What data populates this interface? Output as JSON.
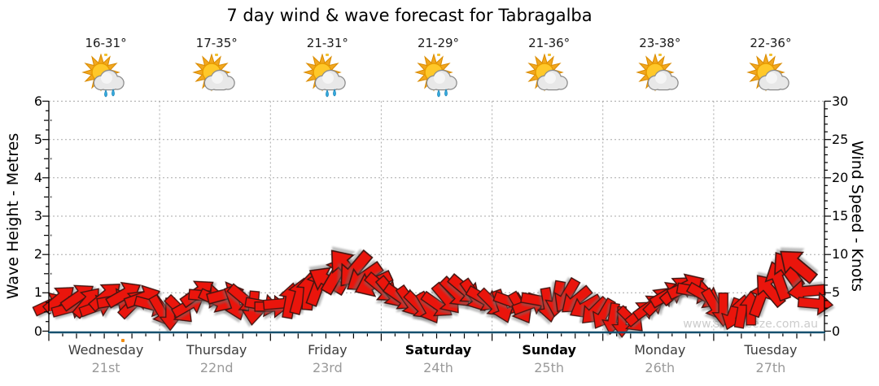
{
  "title": "7 day wind & wave forecast for Tabragalba",
  "watermark": "www.seabreeze.com.au",
  "colors": {
    "arrow_fill": "#ea150c",
    "arrow_stroke": "#401410",
    "baseline": "#15506e",
    "axis_line": "#000000",
    "grid": "#a8a8a8",
    "sun": "#ffc829",
    "sun_rays": "#f2a71f",
    "cloud": "#e8e8e8",
    "rain": "#35aadf",
    "watermark_color": "#cccccc"
  },
  "days": [
    {
      "name": "Wednesday",
      "date": "21st",
      "temp": "16-31°",
      "icon": "sun-cloud-rain",
      "weekend": false
    },
    {
      "name": "Thursday",
      "date": "22nd",
      "temp": "17-35°",
      "icon": "sun-cloud",
      "weekend": false
    },
    {
      "name": "Friday",
      "date": "23rd",
      "temp": "21-31°",
      "icon": "sun-cloud-rain",
      "weekend": false
    },
    {
      "name": "Saturday",
      "date": "24th",
      "temp": "21-29°",
      "icon": "sun-cloud-rain",
      "weekend": true
    },
    {
      "name": "Sunday",
      "date": "25th",
      "temp": "21-36°",
      "icon": "sun-cloud",
      "weekend": true
    },
    {
      "name": "Monday",
      "date": "26th",
      "temp": "23-38°",
      "icon": "sun-cloud",
      "weekend": false
    },
    {
      "name": "Tuesday",
      "date": "27th",
      "temp": "22-36°",
      "icon": "sun-cloud",
      "weekend": false
    }
  ],
  "axes": {
    "left": {
      "title": "Wave Height - Metres",
      "ticks": [
        0,
        1,
        2,
        3,
        4,
        5,
        6
      ],
      "max": 6
    },
    "right": {
      "title": "Wind Speed - Knots",
      "ticks": [
        0,
        5,
        10,
        15,
        20,
        25,
        30
      ],
      "max": 30
    }
  },
  "chart_data": {
    "type": "wind-arrow-series",
    "description": "Red wind arrows plotted against the Wind Speed - Knots axis, ~2-hourly, 12 per day over 7 days. Rotation 0 = pointing right, negative = upward, positive = downward (degrees).",
    "categories": [
      "Wednesday 21st",
      "Thursday 22nd",
      "Friday 23rd",
      "Saturday 24th",
      "Sunday 25th",
      "Monday 26th",
      "Tuesday 27th"
    ],
    "points_per_day": 12,
    "ylim_wave_metres": [
      0,
      6
    ],
    "ylim_wind_knots": [
      0,
      30
    ],
    "grid": "dotted horizontal at each metre, dotted vertical at day boundaries",
    "legend": "none",
    "wind_speed_knots": [
      3.5,
      4.2,
      3.0,
      4.5,
      3.8,
      3.2,
      4.6,
      4.0,
      4.8,
      3.6,
      4.4,
      3.4,
      2.6,
      2.2,
      2.8,
      3.4,
      5.0,
      4.6,
      4.0,
      4.8,
      3.6,
      4.2,
      3.0,
      3.4,
      3.2,
      3.6,
      4.0,
      4.6,
      5.2,
      5.8,
      6.6,
      7.4,
      8.4,
      8.0,
      7.0,
      6.2,
      5.6,
      5.0,
      4.4,
      3.8,
      3.3,
      3.0,
      3.4,
      4.2,
      5.0,
      5.4,
      4.6,
      4.2,
      3.6,
      3.2,
      3.8,
      3.0,
      3.5,
      4.0,
      3.4,
      4.2,
      4.6,
      4.0,
      3.2,
      2.6,
      2.2,
      1.6,
      1.2,
      1.5,
      2.4,
      3.2,
      4.0,
      4.8,
      5.4,
      5.8,
      5.2,
      4.6,
      3.4,
      2.8,
      2.2,
      2.6,
      3.0,
      4.2,
      5.4,
      6.6,
      8.0,
      8.6,
      5.2,
      3.6
    ],
    "arrow_rotation_deg": [
      -25,
      -40,
      -15,
      -35,
      -50,
      -20,
      -40,
      -10,
      -30,
      -45,
      -20,
      15,
      60,
      90,
      45,
      -30,
      -35,
      5,
      25,
      -15,
      70,
      40,
      95,
      10,
      0,
      -5,
      -80,
      -75,
      -85,
      -70,
      -150,
      -60,
      -130,
      130,
      145,
      155,
      40,
      50,
      35,
      55,
      45,
      60,
      35,
      50,
      45,
      40,
      55,
      30,
      45,
      70,
      20,
      60,
      -20,
      10,
      80,
      100,
      120,
      140,
      150,
      135,
      120,
      100,
      90,
      45,
      -40,
      -35,
      -45,
      -30,
      -40,
      -25,
      10,
      30,
      60,
      90,
      110,
      -80,
      -90,
      -70,
      -130,
      -110,
      -125,
      -140,
      175,
      5
    ]
  }
}
